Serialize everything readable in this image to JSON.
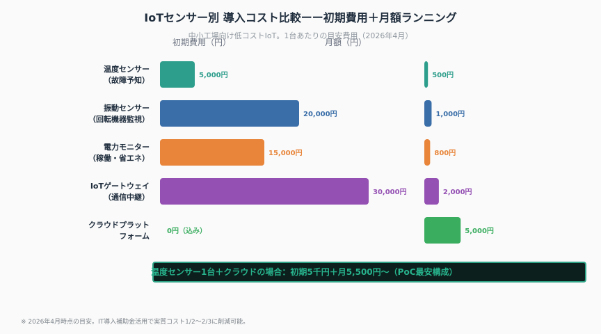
{
  "title": "IoTセンサー別 導入コスト比較ーー初期費用＋月額ランニング",
  "subtitle": "中小工場向け低コストIoT。1台あたりの目安費用（2026年4月）",
  "summary_note": "温度センサー1台＋クラウドの場合：初期5千円＋月5,500円〜（PoC最安構成）",
  "footnote": "※ 2026年4月時点の目安。IT導入補助金活用で実質コスト1/2〜2/3に削減可能。",
  "chart_data": {
    "type": "bar",
    "orientation": "horizontal",
    "panels": [
      {
        "name": "初期費用（円）",
        "xlim": [
          0,
          37000
        ]
      },
      {
        "name": "月額（円）",
        "xlim": [
          0,
          22000
        ]
      }
    ],
    "categories": [
      {
        "line1": "温度センサー",
        "line2": "（故障予知）"
      },
      {
        "line1": "振動センサー",
        "line2": "（回転機器監視）"
      },
      {
        "line1": "電力モニター",
        "line2": "（稼働・省エネ）"
      },
      {
        "line1": "IoTゲートウェイ",
        "line2": "（通信中継）"
      },
      {
        "line1": "クラウドプラット",
        "line2": "フォーム"
      }
    ],
    "series": [
      {
        "name": "初期費用（円）",
        "values": [
          5000,
          20000,
          15000,
          30000,
          0
        ],
        "labels": [
          "5,000円",
          "20,000円",
          "15,000円",
          "30,000円",
          "0円（込み）"
        ]
      },
      {
        "name": "月額（円）",
        "values": [
          500,
          1000,
          800,
          2000,
          5000
        ],
        "labels": [
          "500円",
          "1,000円",
          "800円",
          "2,000円",
          "5,000円"
        ]
      }
    ],
    "colors": [
      "#2e9e8c",
      "#3a6ea8",
      "#e8853a",
      "#9450b3",
      "#3aad5f"
    ]
  }
}
